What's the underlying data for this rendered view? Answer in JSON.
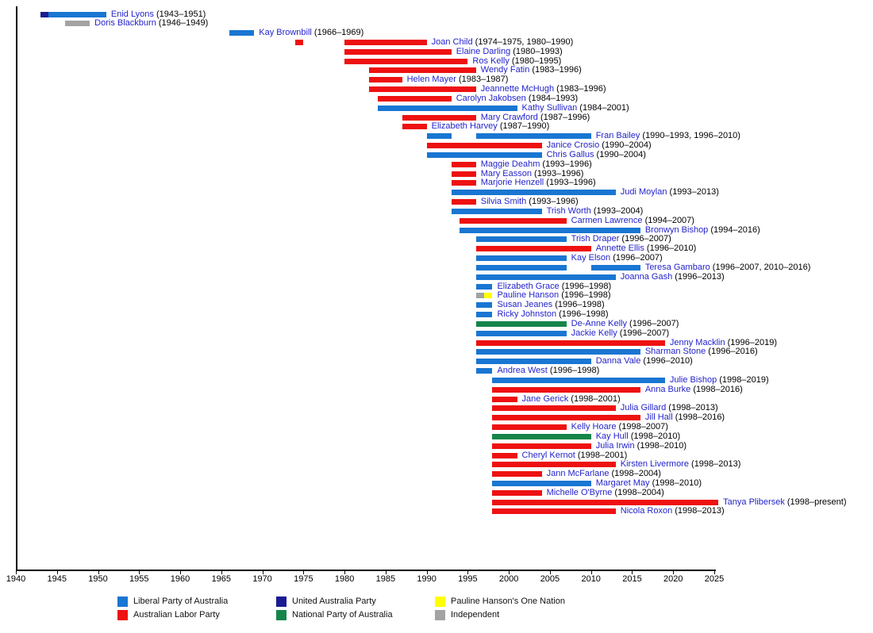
{
  "chart_data": {
    "type": "bar",
    "subtype": "gantt-timeline",
    "title": "",
    "xlabel": "",
    "ylabel": "",
    "grid": false,
    "axis": {
      "start": 1940,
      "end": 2025,
      "tick_interval": 5
    },
    "legend_position": "bottom",
    "text_colors": {
      "member_name": "#2323CB",
      "member_dates": "#000000"
    },
    "parties": {
      "LIB": {
        "label": "Liberal Party of Australia",
        "color": "#1976D2"
      },
      "ALP": {
        "label": "Australian Labor Party",
        "color": "#EE1111"
      },
      "UAP": {
        "label": "United Australia Party",
        "color": "#1B1B93"
      },
      "NAT": {
        "label": "National Party of Australia",
        "color": "#15854A"
      },
      "PHON": {
        "label": "Pauline Hanson's One Nation",
        "color": "#FFFF00"
      },
      "IND": {
        "label": "Independent",
        "color": "#A3A3A3"
      }
    },
    "legend_order": [
      "LIB",
      "ALP",
      "UAP",
      "NAT",
      "PHON",
      "IND"
    ],
    "members": [
      {
        "name": "Enid Lyons",
        "dates": "(1943–1951)",
        "segments": [
          {
            "from": 1943,
            "to": 1944,
            "party": "UAP"
          },
          {
            "from": 1944,
            "to": 1951,
            "party": "LIB"
          }
        ]
      },
      {
        "name": "Doris Blackburn",
        "dates": "(1946–1949)",
        "segments": [
          {
            "from": 1946,
            "to": 1949,
            "party": "IND"
          }
        ]
      },
      {
        "name": "Kay Brownbill",
        "dates": "(1966–1969)",
        "segments": [
          {
            "from": 1966,
            "to": 1969,
            "party": "LIB"
          }
        ]
      },
      {
        "name": "Joan Child",
        "dates": "(1974–1975, 1980–1990)",
        "segments": [
          {
            "from": 1974,
            "to": 1975,
            "party": "ALP"
          },
          {
            "from": 1980,
            "to": 1990,
            "party": "ALP"
          }
        ]
      },
      {
        "name": "Elaine Darling",
        "dates": "(1980–1993)",
        "segments": [
          {
            "from": 1980,
            "to": 1993,
            "party": "ALP"
          }
        ]
      },
      {
        "name": "Ros Kelly",
        "dates": "(1980–1995)",
        "segments": [
          {
            "from": 1980,
            "to": 1995,
            "party": "ALP"
          }
        ]
      },
      {
        "name": "Wendy Fatin",
        "dates": "(1983–1996)",
        "segments": [
          {
            "from": 1983,
            "to": 1996,
            "party": "ALP"
          }
        ]
      },
      {
        "name": "Helen Mayer",
        "dates": "(1983–1987)",
        "segments": [
          {
            "from": 1983,
            "to": 1987,
            "party": "ALP"
          }
        ]
      },
      {
        "name": "Jeannette McHugh",
        "dates": "(1983–1996)",
        "segments": [
          {
            "from": 1983,
            "to": 1996,
            "party": "ALP"
          }
        ]
      },
      {
        "name": "Carolyn Jakobsen",
        "dates": "(1984–1993)",
        "segments": [
          {
            "from": 1984,
            "to": 1993,
            "party": "ALP"
          }
        ]
      },
      {
        "name": "Kathy Sullivan",
        "dates": "(1984–2001)",
        "segments": [
          {
            "from": 1984,
            "to": 2001,
            "party": "LIB"
          }
        ]
      },
      {
        "name": "Mary Crawford",
        "dates": "(1987–1996)",
        "segments": [
          {
            "from": 1987,
            "to": 1996,
            "party": "ALP"
          }
        ]
      },
      {
        "name": "Elizabeth Harvey",
        "dates": "(1987–1990)",
        "segments": [
          {
            "from": 1987,
            "to": 1990,
            "party": "ALP"
          }
        ]
      },
      {
        "name": "Fran Bailey",
        "dates": "(1990–1993, 1996–2010)",
        "segments": [
          {
            "from": 1990,
            "to": 1993,
            "party": "LIB"
          },
          {
            "from": 1996,
            "to": 2010,
            "party": "LIB"
          }
        ]
      },
      {
        "name": "Janice Crosio",
        "dates": "(1990–2004)",
        "segments": [
          {
            "from": 1990,
            "to": 2004,
            "party": "ALP"
          }
        ]
      },
      {
        "name": "Chris Gallus",
        "dates": "(1990–2004)",
        "segments": [
          {
            "from": 1990,
            "to": 2004,
            "party": "LIB"
          }
        ]
      },
      {
        "name": "Maggie Deahm",
        "dates": "(1993–1996)",
        "segments": [
          {
            "from": 1993,
            "to": 1996,
            "party": "ALP"
          }
        ]
      },
      {
        "name": "Mary Easson",
        "dates": "(1993–1996)",
        "segments": [
          {
            "from": 1993,
            "to": 1996,
            "party": "ALP"
          }
        ]
      },
      {
        "name": "Marjorie Henzell",
        "dates": "(1993–1996)",
        "segments": [
          {
            "from": 1993,
            "to": 1996,
            "party": "ALP"
          }
        ]
      },
      {
        "name": "Judi Moylan",
        "dates": "(1993–2013)",
        "segments": [
          {
            "from": 1993,
            "to": 2013,
            "party": "LIB"
          }
        ]
      },
      {
        "name": "Silvia Smith",
        "dates": "(1993–1996)",
        "segments": [
          {
            "from": 1993,
            "to": 1996,
            "party": "ALP"
          }
        ]
      },
      {
        "name": "Trish Worth",
        "dates": "(1993–2004)",
        "segments": [
          {
            "from": 1993,
            "to": 2004,
            "party": "LIB"
          }
        ]
      },
      {
        "name": "Carmen Lawrence",
        "dates": "(1994–2007)",
        "segments": [
          {
            "from": 1994,
            "to": 2007,
            "party": "ALP"
          }
        ]
      },
      {
        "name": "Bronwyn Bishop",
        "dates": "(1994–2016)",
        "segments": [
          {
            "from": 1994,
            "to": 2016,
            "party": "LIB"
          }
        ]
      },
      {
        "name": "Trish Draper",
        "dates": "(1996–2007)",
        "segments": [
          {
            "from": 1996,
            "to": 2007,
            "party": "LIB"
          }
        ]
      },
      {
        "name": "Annette Ellis",
        "dates": "(1996–2010)",
        "segments": [
          {
            "from": 1996,
            "to": 2010,
            "party": "ALP"
          }
        ]
      },
      {
        "name": "Kay Elson",
        "dates": "(1996–2007)",
        "segments": [
          {
            "from": 1996,
            "to": 2007,
            "party": "LIB"
          }
        ]
      },
      {
        "name": "Teresa Gambaro",
        "dates": "(1996–2007, 2010–2016)",
        "segments": [
          {
            "from": 1996,
            "to": 2007,
            "party": "LIB"
          },
          {
            "from": 2010,
            "to": 2016,
            "party": "LIB"
          }
        ]
      },
      {
        "name": "Joanna Gash",
        "dates": "(1996–2013)",
        "segments": [
          {
            "from": 1996,
            "to": 2013,
            "party": "LIB"
          }
        ]
      },
      {
        "name": "Elizabeth Grace",
        "dates": "(1996–1998)",
        "segments": [
          {
            "from": 1996,
            "to": 1998,
            "party": "LIB"
          }
        ]
      },
      {
        "name": "Pauline Hanson",
        "dates": "(1996–1998)",
        "segments": [
          {
            "from": 1996,
            "to": 1997,
            "party": "IND"
          },
          {
            "from": 1997,
            "to": 1998,
            "party": "PHON"
          }
        ]
      },
      {
        "name": "Susan Jeanes",
        "dates": "(1996–1998)",
        "segments": [
          {
            "from": 1996,
            "to": 1998,
            "party": "LIB"
          }
        ]
      },
      {
        "name": "Ricky Johnston",
        "dates": "(1996–1998)",
        "segments": [
          {
            "from": 1996,
            "to": 1998,
            "party": "LIB"
          }
        ]
      },
      {
        "name": "De-Anne Kelly",
        "dates": "(1996–2007)",
        "segments": [
          {
            "from": 1996,
            "to": 2007,
            "party": "NAT"
          }
        ]
      },
      {
        "name": "Jackie Kelly",
        "dates": "(1996–2007)",
        "segments": [
          {
            "from": 1996,
            "to": 2007,
            "party": "LIB"
          }
        ]
      },
      {
        "name": "Jenny Macklin",
        "dates": "(1996–2019)",
        "segments": [
          {
            "from": 1996,
            "to": 2019,
            "party": "ALP"
          }
        ]
      },
      {
        "name": "Sharman Stone",
        "dates": "(1996–2016)",
        "segments": [
          {
            "from": 1996,
            "to": 2016,
            "party": "LIB"
          }
        ]
      },
      {
        "name": "Danna Vale",
        "dates": "(1996–2010)",
        "segments": [
          {
            "from": 1996,
            "to": 2010,
            "party": "LIB"
          }
        ]
      },
      {
        "name": "Andrea West",
        "dates": "(1996–1998)",
        "segments": [
          {
            "from": 1996,
            "to": 1998,
            "party": "LIB"
          }
        ]
      },
      {
        "name": "Julie Bishop",
        "dates": "(1998–2019)",
        "segments": [
          {
            "from": 1998,
            "to": 2019,
            "party": "LIB"
          }
        ]
      },
      {
        "name": "Anna Burke",
        "dates": "(1998–2016)",
        "segments": [
          {
            "from": 1998,
            "to": 2016,
            "party": "ALP"
          }
        ]
      },
      {
        "name": "Jane Gerick",
        "dates": "(1998–2001)",
        "segments": [
          {
            "from": 1998,
            "to": 2001,
            "party": "ALP"
          }
        ]
      },
      {
        "name": "Julia Gillard",
        "dates": "(1998–2013)",
        "segments": [
          {
            "from": 1998,
            "to": 2013,
            "party": "ALP"
          }
        ]
      },
      {
        "name": "Jill Hall",
        "dates": "(1998–2016)",
        "segments": [
          {
            "from": 1998,
            "to": 2016,
            "party": "ALP"
          }
        ]
      },
      {
        "name": "Kelly Hoare",
        "dates": "(1998–2007)",
        "segments": [
          {
            "from": 1998,
            "to": 2007,
            "party": "ALP"
          }
        ]
      },
      {
        "name": "Kay Hull",
        "dates": "(1998–2010)",
        "segments": [
          {
            "from": 1998,
            "to": 2010,
            "party": "NAT"
          }
        ]
      },
      {
        "name": "Julia Irwin",
        "dates": "(1998–2010)",
        "segments": [
          {
            "from": 1998,
            "to": 2010,
            "party": "ALP"
          }
        ]
      },
      {
        "name": "Cheryl Kernot",
        "dates": "(1998–2001)",
        "segments": [
          {
            "from": 1998,
            "to": 2001,
            "party": "ALP"
          }
        ]
      },
      {
        "name": "Kirsten Livermore",
        "dates": "(1998–2013)",
        "segments": [
          {
            "from": 1998,
            "to": 2013,
            "party": "ALP"
          }
        ]
      },
      {
        "name": "Jann McFarlane",
        "dates": "(1998–2004)",
        "segments": [
          {
            "from": 1998,
            "to": 2004,
            "party": "ALP"
          }
        ]
      },
      {
        "name": "Margaret May",
        "dates": "(1998–2010)",
        "segments": [
          {
            "from": 1998,
            "to": 2010,
            "party": "LIB"
          }
        ]
      },
      {
        "name": "Michelle O'Byrne",
        "dates": "(1998–2004)",
        "segments": [
          {
            "from": 1998,
            "to": 2004,
            "party": "ALP"
          }
        ]
      },
      {
        "name": "Tanya Plibersek",
        "dates": "(1998–present)",
        "segments": [
          {
            "from": 1998,
            "to": 2025.5,
            "party": "ALP"
          }
        ]
      },
      {
        "name": "Nicola Roxon",
        "dates": "(1998–2013)",
        "segments": [
          {
            "from": 1998,
            "to": 2013,
            "party": "ALP"
          }
        ]
      }
    ]
  }
}
